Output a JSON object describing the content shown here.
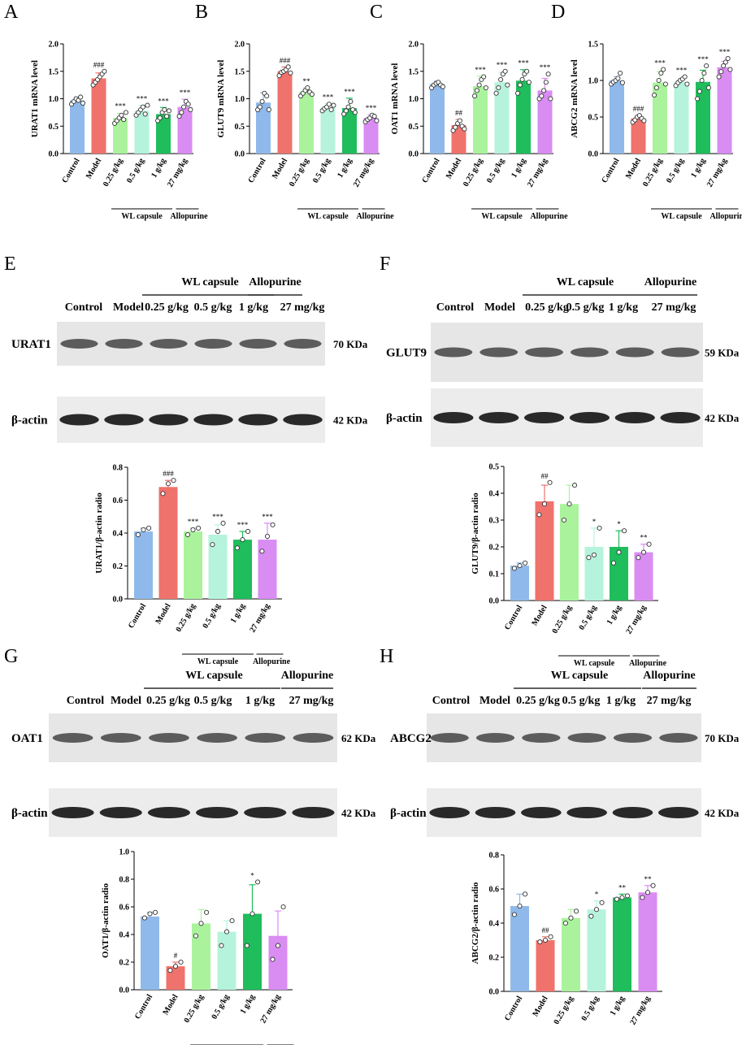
{
  "panels": {
    "A": "A",
    "B": "B",
    "C": "C",
    "D": "D",
    "E": "E",
    "F": "F",
    "G": "G",
    "H": "H"
  },
  "groups_mrna": [
    "Control",
    "Model",
    "0.25 g/kg",
    "0.5 g/kg",
    "1 g/kg",
    "27 mg/kg"
  ],
  "group_colors": [
    "#8fb9ea",
    "#f0726c",
    "#aaf39c",
    "#b6f3dc",
    "#1fbd5b",
    "#d98cf2"
  ],
  "bracket_labels": {
    "wl": "WL capsule",
    "allo": "Allopurine"
  },
  "blot_headers": {
    "control": "Control",
    "model": "Model",
    "d1": "0.25 g/kg",
    "d2": "0.5 g/kg",
    "d3": "1 g/kg",
    "allo_dose": "27 mg/kg",
    "wl": "WL capsule",
    "allo": "Allopurine"
  },
  "blots": {
    "E": {
      "target": "URAT1",
      "target_kda": "70 KDa",
      "actin": "β-actin",
      "actin_kda": "42 KDa"
    },
    "F": {
      "target": "GLUT9",
      "target_kda": "59 KDa",
      "actin": "β-actin",
      "actin_kda": "42 KDa"
    },
    "G": {
      "target": "OAT1",
      "target_kda": "62 KDa",
      "actin": "β-actin",
      "actin_kda": "42 KDa"
    },
    "H": {
      "target": "ABCG2",
      "target_kda": "70 KDa",
      "actin": "β-actin",
      "actin_kda": "42 KDa"
    }
  },
  "chart_data": [
    {
      "panel": "A",
      "type": "bar",
      "categories": [
        "Control",
        "Model",
        "0.25 g/kg",
        "0.5 g/kg",
        "1 g/kg",
        "27 mg/kg"
      ],
      "values": [
        0.97,
        1.37,
        0.65,
        0.78,
        0.72,
        0.85
      ],
      "errors": [
        0.06,
        0.1,
        0.08,
        0.1,
        0.12,
        0.14
      ],
      "points": [
        [
          0.9,
          0.95,
          1.0,
          0.97,
          1.03,
          0.92
        ],
        [
          1.25,
          1.3,
          1.35,
          1.4,
          1.45,
          1.5
        ],
        [
          0.55,
          0.6,
          0.65,
          0.7,
          0.62,
          0.75
        ],
        [
          0.7,
          0.75,
          0.8,
          0.85,
          0.72,
          0.88
        ],
        [
          0.6,
          0.65,
          0.75,
          0.8,
          0.68,
          0.78
        ],
        [
          0.68,
          0.75,
          0.85,
          0.95,
          0.9,
          0.8
        ]
      ],
      "significance": [
        "",
        "###",
        "***",
        "***",
        "***",
        "***"
      ],
      "ylabel": "URAT1 mRNA level",
      "ylim": [
        0,
        2.0
      ],
      "yticks": [
        "0.0",
        "0.5",
        "1.0",
        "1.5",
        "2.0"
      ]
    },
    {
      "panel": "B",
      "type": "bar",
      "categories": [
        "Control",
        "Model",
        "0.25 g/kg",
        "0.5 g/kg",
        "1 g/kg",
        "27 mg/kg"
      ],
      "values": [
        0.93,
        1.5,
        1.13,
        0.84,
        0.83,
        0.65
      ],
      "errors": [
        0.18,
        0.08,
        0.07,
        0.07,
        0.18,
        0.06
      ],
      "points": [
        [
          0.8,
          0.85,
          0.95,
          1.1,
          1.05,
          0.8
        ],
        [
          1.42,
          1.48,
          1.5,
          1.53,
          1.58,
          1.47
        ],
        [
          1.05,
          1.1,
          1.15,
          1.2,
          1.12,
          1.08
        ],
        [
          0.78,
          0.82,
          0.85,
          0.9,
          0.8,
          0.88
        ],
        [
          0.72,
          0.78,
          0.85,
          0.95,
          0.8,
          0.75
        ],
        [
          0.58,
          0.62,
          0.65,
          0.7,
          0.68,
          0.6
        ]
      ],
      "significance": [
        "",
        "###",
        "**",
        "***",
        "***",
        "***"
      ],
      "ylabel": "GLUT9 mRNA level",
      "ylim": [
        0,
        2.0
      ],
      "yticks": [
        "0.0",
        "0.5",
        "1.0",
        "1.5",
        "2.0"
      ]
    },
    {
      "panel": "C",
      "type": "bar",
      "categories": [
        "Control",
        "Model",
        "0.25 g/kg",
        "0.5 g/kg",
        "1 g/kg",
        "27 mg/kg"
      ],
      "values": [
        1.27,
        0.52,
        1.23,
        1.3,
        1.33,
        1.15
      ],
      "errors": [
        0.05,
        0.1,
        0.18,
        0.18,
        0.2,
        0.22
      ],
      "points": [
        [
          1.2,
          1.25,
          1.28,
          1.3,
          1.25,
          1.22
        ],
        [
          0.42,
          0.48,
          0.55,
          0.6,
          0.5,
          0.45
        ],
        [
          1.05,
          1.15,
          1.25,
          1.35,
          1.4,
          1.2
        ],
        [
          1.1,
          1.2,
          1.35,
          1.45,
          1.5,
          1.25
        ],
        [
          1.1,
          1.25,
          1.35,
          1.45,
          1.5,
          1.3
        ],
        [
          1.0,
          1.05,
          1.15,
          1.3,
          1.45,
          1.0
        ]
      ],
      "significance": [
        "",
        "##",
        "***",
        "***",
        "***",
        "***"
      ],
      "ylabel": "OAT1 mRNA level",
      "ylim": [
        0,
        2.0
      ],
      "yticks": [
        "0.0",
        "0.5",
        "1.0",
        "1.5",
        "2.0"
      ]
    },
    {
      "panel": "D",
      "type": "bar",
      "categories": [
        "Control",
        "Model",
        "0.25 g/kg",
        "0.5 g/kg",
        "1 g/kg",
        "27 mg/kg"
      ],
      "values": [
        1.0,
        0.48,
        0.97,
        0.98,
        0.98,
        1.18
      ],
      "errors": [
        0.05,
        0.04,
        0.15,
        0.05,
        0.16,
        0.08
      ],
      "points": [
        [
          0.95,
          0.98,
          1.0,
          1.03,
          1.1,
          0.97
        ],
        [
          0.43,
          0.46,
          0.5,
          0.52,
          0.48,
          0.45
        ],
        [
          0.8,
          0.9,
          1.0,
          1.1,
          1.15,
          0.95
        ],
        [
          0.93,
          0.97,
          1.0,
          1.02,
          1.05,
          0.95
        ],
        [
          0.75,
          0.85,
          1.0,
          1.1,
          1.2,
          0.9
        ],
        [
          1.05,
          1.12,
          1.2,
          1.25,
          1.3,
          1.15
        ]
      ],
      "significance": [
        "",
        "###",
        "***",
        "***",
        "***",
        "***"
      ],
      "ylabel": "ABCG2 mRNA level",
      "ylim": [
        0,
        1.5
      ],
      "yticks": [
        "0.0",
        "0.5",
        "1.0",
        "1.5"
      ]
    },
    {
      "panel": "E",
      "type": "bar",
      "categories": [
        "Control",
        "Model",
        "0.25 g/kg",
        "0.5 g/kg",
        "1 g/kg",
        "27 mg/kg"
      ],
      "values": [
        0.41,
        0.68,
        0.41,
        0.39,
        0.36,
        0.36
      ],
      "errors": [
        0.02,
        0.04,
        0.02,
        0.06,
        0.05,
        0.1
      ],
      "points": [
        [
          0.39,
          0.42,
          0.43
        ],
        [
          0.64,
          0.7,
          0.72
        ],
        [
          0.39,
          0.42,
          0.43
        ],
        [
          0.33,
          0.41,
          0.46
        ],
        [
          0.31,
          0.36,
          0.41
        ],
        [
          0.29,
          0.38,
          0.45
        ]
      ],
      "significance": [
        "",
        "###",
        "***",
        "***",
        "***",
        "***"
      ],
      "ylabel": "URAT1/β-actin radio",
      "ylim": [
        0,
        0.8
      ],
      "yticks": [
        "0.0",
        "0.2",
        "0.4",
        "0.6",
        "0.8"
      ]
    },
    {
      "panel": "F",
      "type": "bar",
      "categories": [
        "Control",
        "Model",
        "0.25 g/kg",
        "0.5 g/kg",
        "1 g/kg",
        "27 mg/kg"
      ],
      "values": [
        0.13,
        0.37,
        0.36,
        0.2,
        0.2,
        0.18
      ],
      "errors": [
        0.01,
        0.06,
        0.07,
        0.07,
        0.06,
        0.03
      ],
      "points": [
        [
          0.12,
          0.13,
          0.14
        ],
        [
          0.32,
          0.36,
          0.44
        ],
        [
          0.3,
          0.36,
          0.43
        ],
        [
          0.16,
          0.17,
          0.27
        ],
        [
          0.14,
          0.18,
          0.26
        ],
        [
          0.16,
          0.18,
          0.21
        ]
      ],
      "significance": [
        "",
        "##",
        "",
        "*",
        "*",
        "**"
      ],
      "ylabel": "GLUT9/β-actin radio",
      "ylim": [
        0,
        0.5
      ],
      "yticks": [
        "0.0",
        "0.1",
        "0.2",
        "0.3",
        "0.4",
        "0.5"
      ]
    },
    {
      "panel": "G",
      "type": "bar",
      "categories": [
        "Control",
        "Model",
        "0.25 g/kg",
        "0.5 g/kg",
        "1 g/kg",
        "27 mg/kg"
      ],
      "values": [
        0.53,
        0.17,
        0.48,
        0.42,
        0.55,
        0.39
      ],
      "errors": [
        0.03,
        0.03,
        0.1,
        0.08,
        0.21,
        0.18
      ],
      "points": [
        [
          0.52,
          0.55,
          0.56
        ],
        [
          0.14,
          0.17,
          0.2
        ],
        [
          0.39,
          0.48,
          0.56
        ],
        [
          0.32,
          0.42,
          0.5
        ],
        [
          0.32,
          0.55,
          0.78
        ],
        [
          0.22,
          0.32,
          0.6
        ]
      ],
      "significance": [
        "",
        "#",
        "",
        "",
        "*",
        ""
      ],
      "ylabel": "OAT1/β-actin radio",
      "ylim": [
        0,
        1.0
      ],
      "yticks": [
        "0.0",
        "0.2",
        "0.4",
        "0.6",
        "0.8",
        "1.0"
      ]
    },
    {
      "panel": "H",
      "type": "bar",
      "categories": [
        "Control",
        "Model",
        "0.25 g/kg",
        "0.5 g/kg",
        "1 g/kg",
        "27 mg/kg"
      ],
      "values": [
        0.5,
        0.3,
        0.43,
        0.48,
        0.55,
        0.58
      ],
      "errors": [
        0.07,
        0.02,
        0.05,
        0.05,
        0.02,
        0.04
      ],
      "points": [
        [
          0.45,
          0.5,
          0.57
        ],
        [
          0.29,
          0.3,
          0.32
        ],
        [
          0.4,
          0.43,
          0.47
        ],
        [
          0.44,
          0.48,
          0.52
        ],
        [
          0.54,
          0.55,
          0.56
        ],
        [
          0.55,
          0.58,
          0.62
        ]
      ],
      "significance": [
        "",
        "##",
        "",
        "*",
        "**",
        "**"
      ],
      "ylabel": "ABCG2/β-actin radio",
      "ylim": [
        0,
        0.8
      ],
      "yticks": [
        "0.0",
        "0.2",
        "0.4",
        "0.6",
        "0.8"
      ]
    }
  ]
}
